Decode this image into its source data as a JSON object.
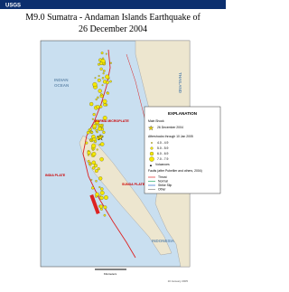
{
  "header": {
    "logo": "USGS"
  },
  "title": [
    "M9.0 Sumatra - Andaman Islands Earthquake of",
    "26 December 2004"
  ],
  "map_labels": [
    "INDIAN",
    "OCEAN",
    "THAILAND",
    "BURMA MICROPLATE",
    "INDIA PLATE",
    "SUNDA PLATE",
    "INDONESIA"
  ],
  "legend": {
    "title": "EXPLANATION",
    "main_shock": "Main Shock",
    "main_shock_date": "26 December 2004",
    "aftershocks": "Aftershocks through 10 Jan 2005",
    "sizes": [
      "4.0 - 4.9",
      "5.0 - 5.9",
      "6.0 - 6.9",
      "7.0 - 7.9"
    ],
    "volcanoes": "Volcanoes",
    "faults": "Faults (after Pubellier and others, 2004)",
    "fault_types": [
      "Thrust",
      "Normal",
      "Strike Slip",
      "Other"
    ]
  },
  "scale": "Kilometers",
  "credit": "10 January 2005"
}
